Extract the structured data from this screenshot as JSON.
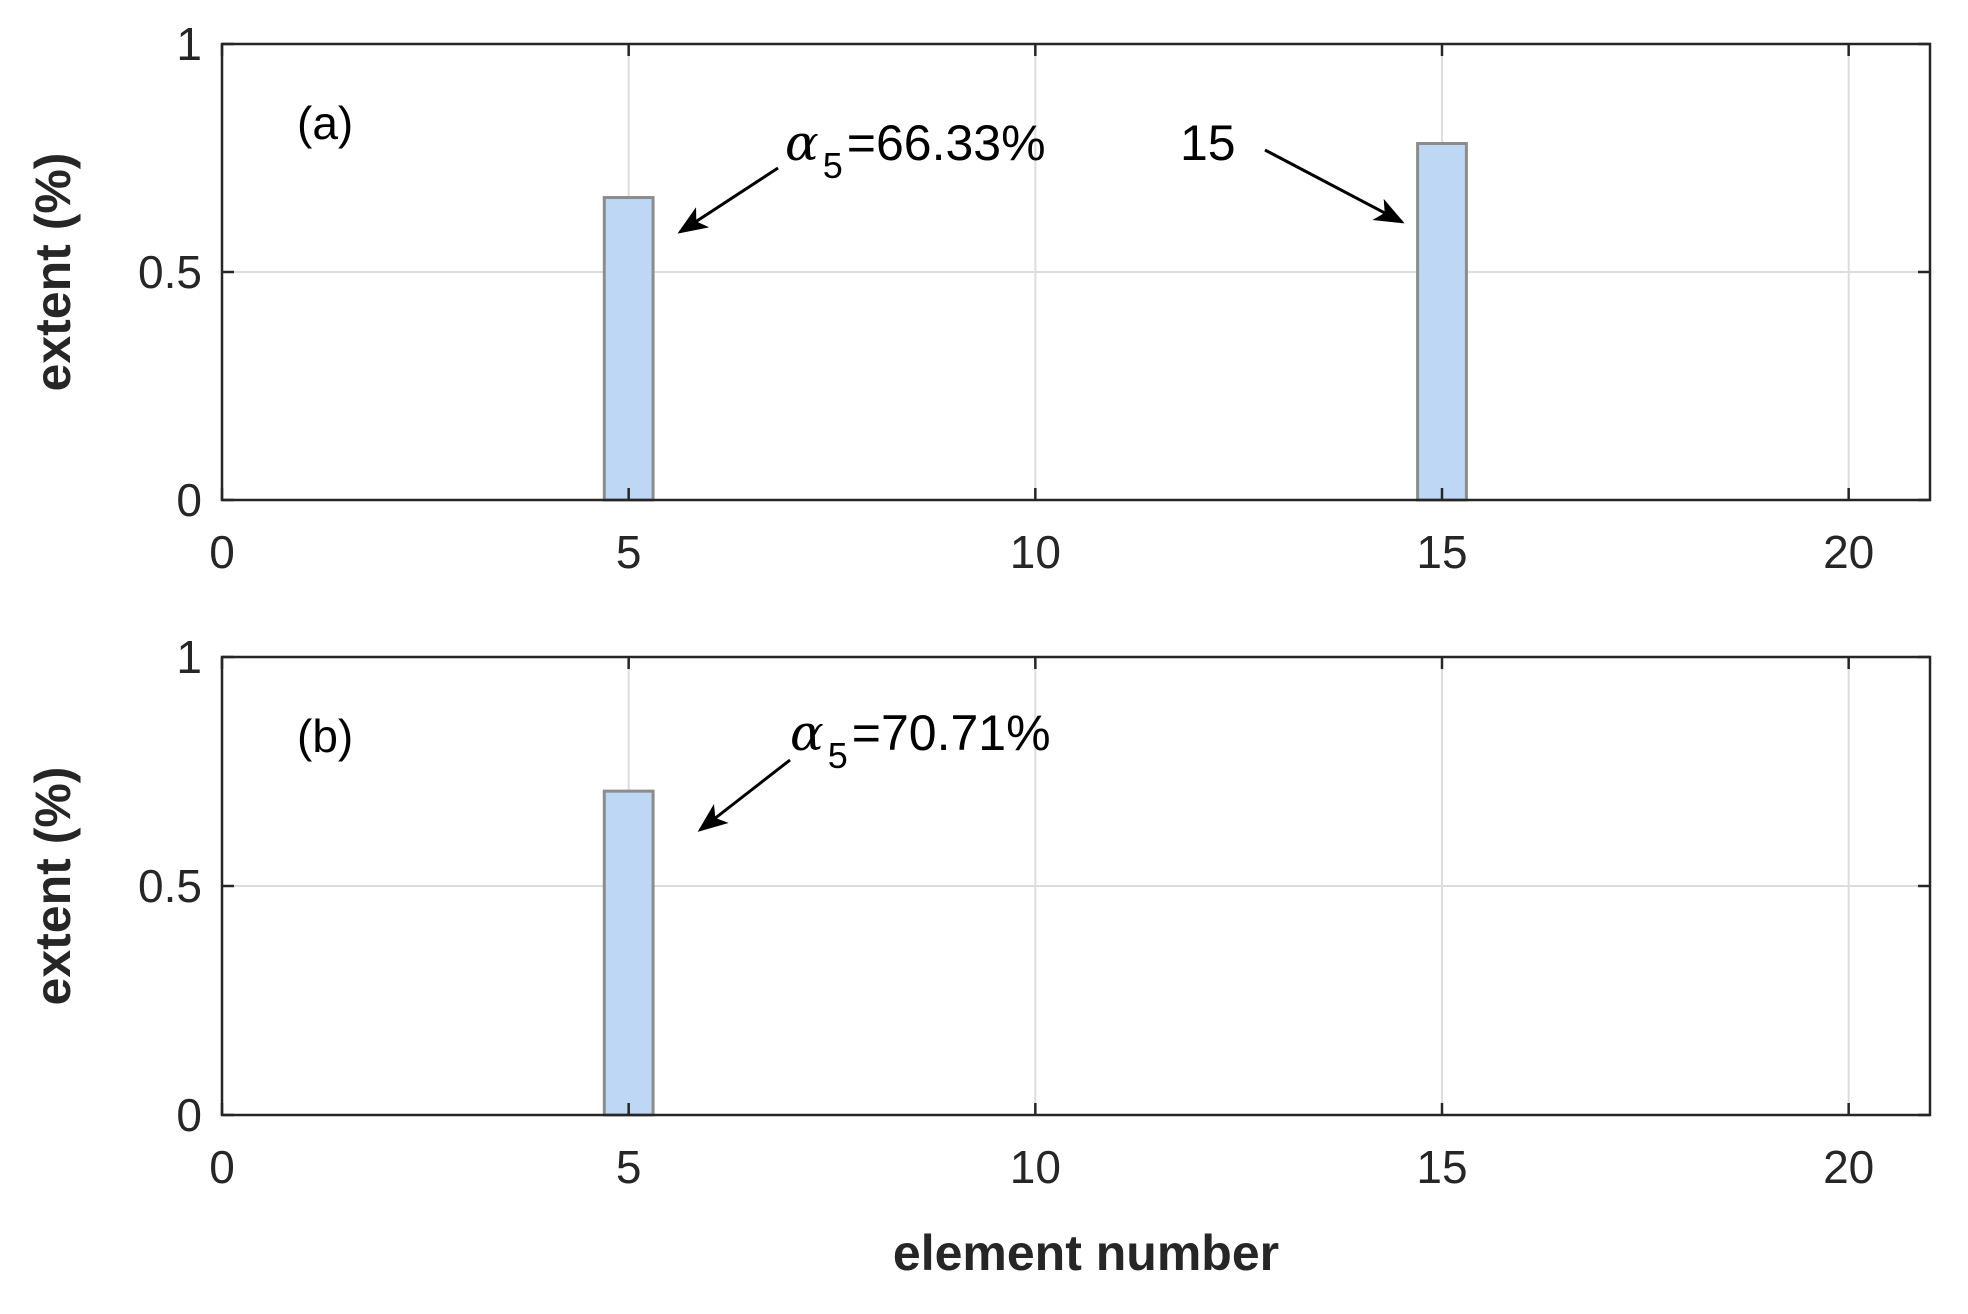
{
  "chart_data": [
    {
      "type": "bar",
      "panel_label": "(a)",
      "x": [
        5,
        15
      ],
      "values": [
        0.6633,
        0.7818
      ],
      "xlabel": "",
      "ylabel": "extent (%)",
      "xlim": [
        0,
        21
      ],
      "ylim": [
        0,
        1
      ],
      "xticks": [
        "0",
        "5",
        "10",
        "15",
        "20"
      ],
      "yticks": [
        "0",
        "0.5",
        "1"
      ],
      "grid": true,
      "bar_color": "#bdd7f5",
      "bar_edge_color": "#8c8c8c",
      "annotations": [
        {
          "symbol": "α",
          "subscript": "5",
          "text": "=66.33%",
          "target_x": 5
        },
        {
          "symbol": "",
          "subscript": "",
          "text": "15",
          "target_x": 15
        }
      ]
    },
    {
      "type": "bar",
      "panel_label": "(b)",
      "x": [
        5
      ],
      "values": [
        0.7071
      ],
      "xlabel": "element number",
      "ylabel": "extent (%)",
      "xlim": [
        0,
        21
      ],
      "ylim": [
        0,
        1
      ],
      "xticks": [
        "0",
        "5",
        "10",
        "15",
        "20"
      ],
      "yticks": [
        "0",
        "0.5",
        "1"
      ],
      "grid": true,
      "bar_color": "#bdd7f5",
      "bar_edge_color": "#8c8c8c",
      "annotations": [
        {
          "symbol": "α",
          "subscript": "5",
          "text": "=70.71%",
          "target_x": 5
        }
      ]
    }
  ]
}
